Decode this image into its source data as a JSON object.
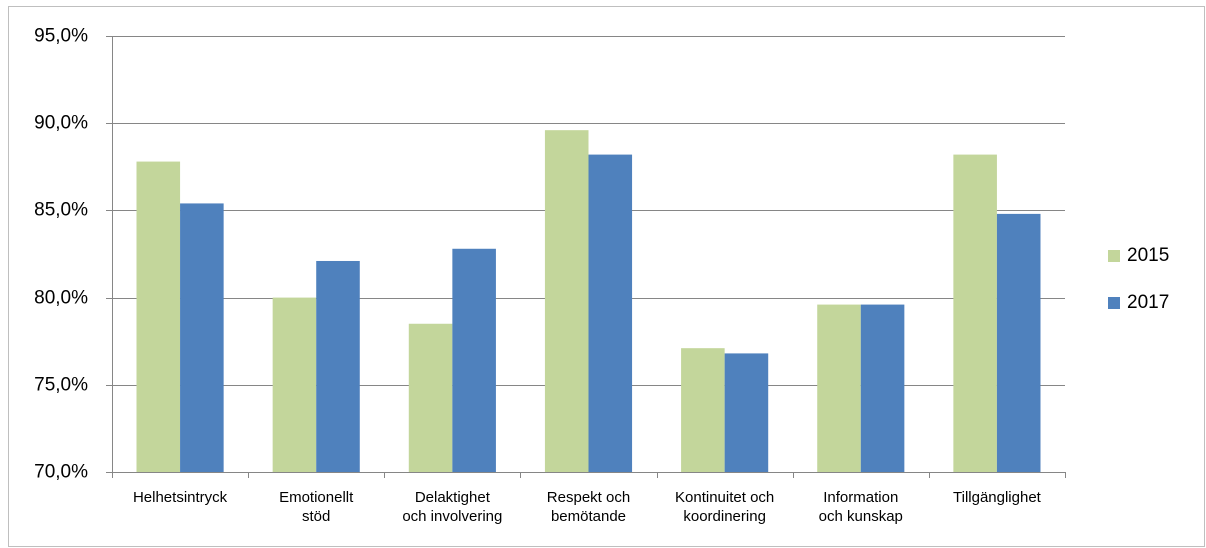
{
  "chart_data": {
    "type": "bar",
    "categories": [
      "Helhetsintryck",
      "Emotionellt\nstöd",
      "Delaktighet\noch involvering",
      "Respekt och\nbemötande",
      "Kontinuitet och\nkoordinering",
      "Information\noch kunskap",
      "Tillgänglighet"
    ],
    "series": [
      {
        "name": "2015",
        "color": "#c3d69b",
        "values": [
          87.8,
          80.0,
          78.5,
          89.6,
          77.1,
          79.6,
          88.2
        ]
      },
      {
        "name": "2017",
        "color": "#4f81bd",
        "values": [
          85.4,
          82.1,
          82.8,
          88.2,
          76.8,
          79.6,
          84.8
        ]
      }
    ],
    "ylim": [
      70,
      95
    ],
    "yticks": [
      {
        "value": 70,
        "label": "70,0%"
      },
      {
        "value": 75,
        "label": "75,0%"
      },
      {
        "value": 80,
        "label": "80,0%"
      },
      {
        "value": 85,
        "label": "85,0%"
      },
      {
        "value": 90,
        "label": "90,0%"
      },
      {
        "value": 95,
        "label": "95,0%"
      }
    ],
    "grid": true,
    "legend": "right"
  }
}
